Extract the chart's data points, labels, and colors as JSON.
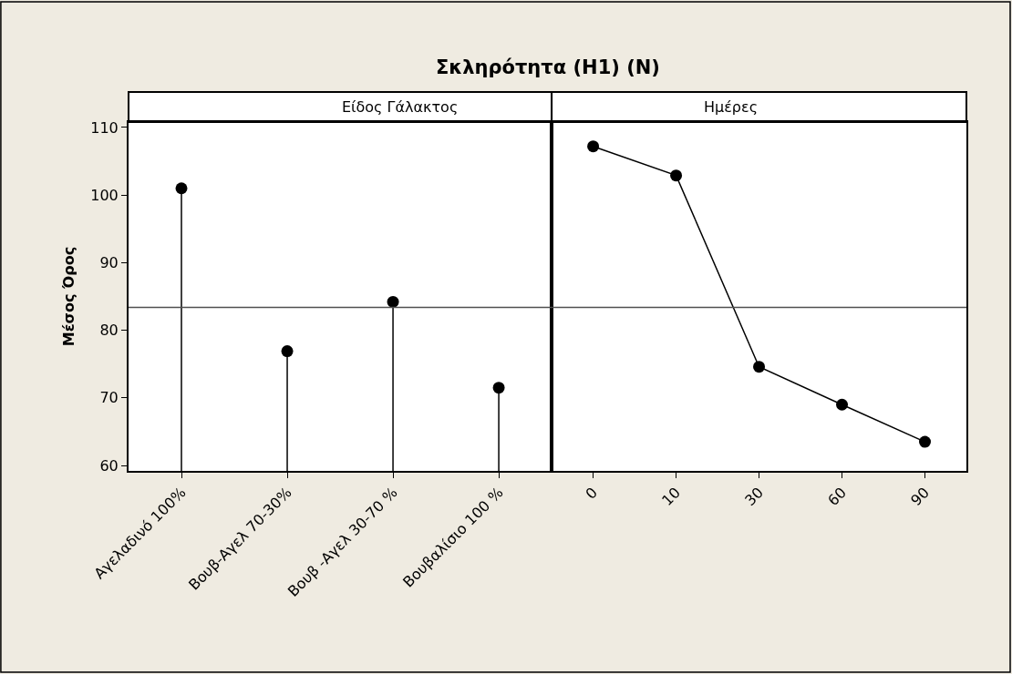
{
  "chart_data": [
    {
      "type": "lollipop",
      "title": "Σκληρότητα (H1) (N)",
      "subtitle": "Είδος Γάλακτος",
      "ylabel": "Μέσος Όρος",
      "categories": [
        "Αγελαδινό 100%",
        "Βουβ-Αγελ 70-30%",
        "Βουβ -Αγελ 30-70 %",
        "Βουβαλίσιο 100 %"
      ],
      "values": [
        101.0,
        76.9,
        84.2,
        71.5
      ],
      "color": "#000000",
      "marker": "circle",
      "ylim": [
        59.2,
        110.8
      ],
      "yticks": [
        60,
        70,
        80,
        90,
        100,
        110
      ],
      "ref_lines": [
        {
          "axis": "y",
          "value": 83.4,
          "color": "#505050"
        }
      ]
    },
    {
      "type": "line",
      "subtitle": "Ημέρες",
      "categories": [
        "0",
        "10",
        "30",
        "60",
        "90"
      ],
      "values": [
        107.2,
        102.9,
        74.6,
        69.0,
        63.5
      ],
      "color": "#000000",
      "marker": "circle",
      "line_style": "solid",
      "ylim": [
        59.2,
        110.8
      ],
      "yticks": [
        60,
        70,
        80,
        90,
        100,
        110
      ],
      "ref_lines": [
        {
          "axis": "y",
          "value": 83.4,
          "color": "#505050"
        }
      ],
      "tick_labels": "x"
    }
  ]
}
